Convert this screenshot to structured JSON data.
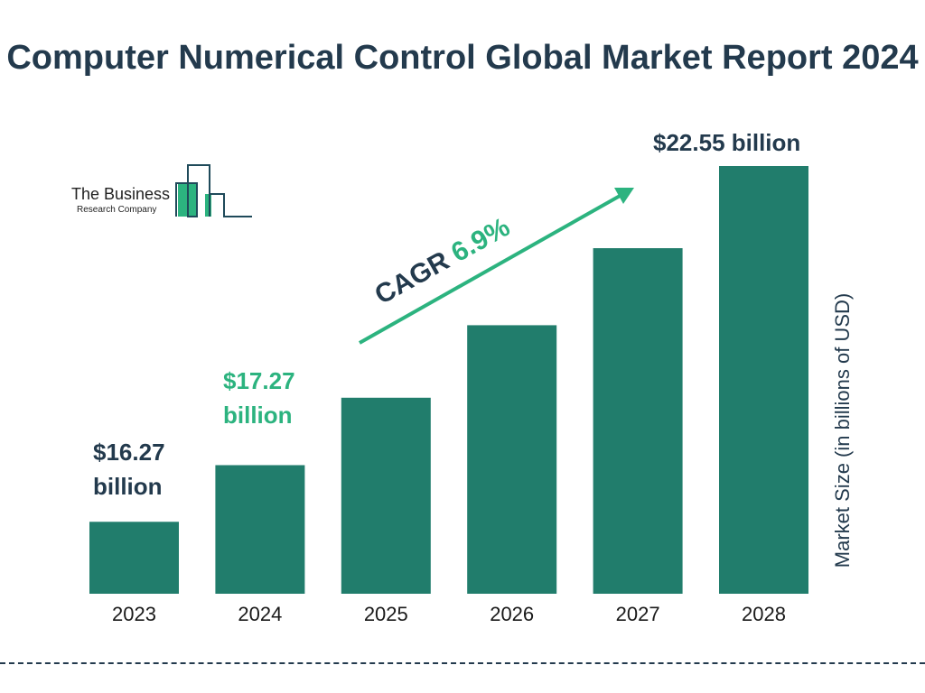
{
  "title": "Computer Numerical Control Global Market Report 2024",
  "logo": {
    "line1": "The Business",
    "line2": "Research Company"
  },
  "cagr": {
    "label": "CAGR",
    "value": "6.9%"
  },
  "colors": {
    "bar": "#217d6c",
    "accent": "#2cb37f",
    "text": "#233a4d"
  },
  "chart_data": {
    "type": "bar",
    "title": "Computer Numerical Control Global Market Report 2024",
    "categories": [
      "2023",
      "2024",
      "2025",
      "2026",
      "2027",
      "2028"
    ],
    "values": [
      16.27,
      17.27,
      18.46,
      19.74,
      21.1,
      22.55
    ],
    "ylabel": "Market Size (in billions of USD)",
    "xlabel": "",
    "grid": false,
    "data_labels": [
      {
        "line1": "$16.27",
        "line2": "billion"
      },
      {
        "line1": "$17.27",
        "line2": "billion"
      },
      {
        "text": "$22.55 billion"
      }
    ]
  }
}
